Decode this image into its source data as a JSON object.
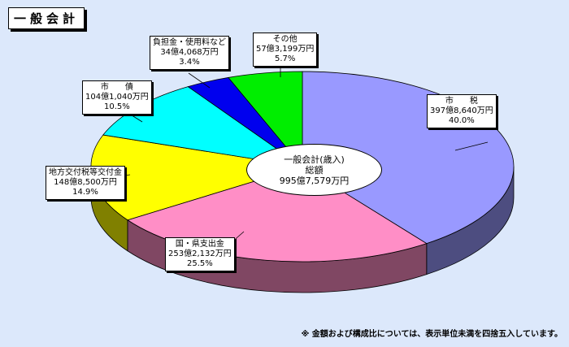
{
  "page_title": "一般会計",
  "chart_data": {
    "type": "pie",
    "style": "3d",
    "title": "一般会計",
    "center_label": [
      "一般会計(歳入)",
      "総額",
      "995億7,579万円"
    ],
    "total": "995億7,579万円",
    "slices": [
      {
        "name": "市　　税",
        "amount": "397億8,640万円",
        "percent": "40.0%",
        "value": 40.0,
        "color": "#9999ff"
      },
      {
        "name": "国・県支出金",
        "amount": "253億2,132万円",
        "percent": "25.5%",
        "value": 25.5,
        "color": "#ff8ec6"
      },
      {
        "name": "地方交付税等交付金",
        "amount": "148億8,500万円",
        "percent": "14.9%",
        "value": 14.9,
        "color": "#ffff00"
      },
      {
        "name": "市　　債",
        "amount": "104億1,040万円",
        "percent": "10.5%",
        "value": 10.5,
        "color": "#00ffff"
      },
      {
        "name": "負担金・使用料など",
        "amount": "34億4,068万円",
        "percent": "3.4%",
        "value": 3.4,
        "color": "#0000ee"
      },
      {
        "name": "その他",
        "amount": "57億3,199万円",
        "percent": "5.7%",
        "value": 5.7,
        "color": "#00ee00"
      }
    ]
  },
  "footnote": "※ 金額および構成比については、表示単位未満を四捨五入しています。"
}
